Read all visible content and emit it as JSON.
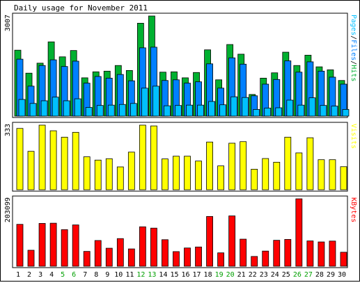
{
  "chart_data": {
    "type": "bar",
    "title": "Daily usage for November 2011",
    "categories": [
      "1",
      "2",
      "3",
      "4",
      "5",
      "6",
      "7",
      "8",
      "9",
      "10",
      "11",
      "12",
      "13",
      "14",
      "15",
      "16",
      "17",
      "18",
      "19",
      "20",
      "21",
      "22",
      "23",
      "24",
      "25",
      "26",
      "27",
      "28",
      "29",
      "30"
    ],
    "weekend_days": [
      "5",
      "6",
      "12",
      "13",
      "19",
      "20",
      "26",
      "27"
    ],
    "grid": false,
    "panels": [
      {
        "id": "hits",
        "ylabel": "Pages/Files/Hits",
        "ylabel_parts": [
          "Pages",
          "/",
          "Files",
          "/",
          "Hits"
        ],
        "ytick_label": "3007",
        "ylim": [
          0,
          3007
        ],
        "series": [
          {
            "name": "Hits",
            "color": "#00b030",
            "values": [
              1980,
              1290,
              1590,
              2230,
              1780,
              1970,
              1150,
              1330,
              1350,
              1520,
              1370,
              2790,
              3007,
              1320,
              1330,
              1150,
              1310,
              1990,
              1090,
              2150,
              1860,
              650,
              1140,
              1300,
              1920,
              1520,
              1830,
              1480,
              1390,
              1070
            ]
          },
          {
            "name": "Files",
            "color": "#0080ff",
            "values": [
              1710,
              900,
              1520,
              1690,
              1490,
              1650,
              990,
              1190,
              1140,
              1250,
              1060,
              2050,
              2070,
              1070,
              1090,
              990,
              1030,
              1570,
              840,
              1750,
              1560,
              610,
              960,
              1100,
              1660,
              1320,
              1630,
              1350,
              1170,
              960
            ]
          },
          {
            "name": "Pages",
            "color": "#00c0ff",
            "values": [
              500,
              380,
              460,
              570,
              460,
              520,
              260,
              320,
              330,
              350,
              380,
              840,
              900,
              310,
              320,
              330,
              330,
              440,
              340,
              580,
              560,
              200,
              240,
              250,
              480,
              330,
              550,
              320,
              300,
              200
            ]
          }
        ]
      },
      {
        "id": "visits",
        "ylabel": "Visits",
        "ytick_label": "333",
        "ylim": [
          0,
          333
        ],
        "series": [
          {
            "name": "Visits",
            "color": "#ffff00",
            "values": [
              316,
              198,
              333,
              304,
              271,
              296,
              170,
              153,
              160,
              118,
              194,
              333,
              329,
              159,
              173,
              173,
              148,
              246,
              123,
              240,
              248,
              106,
              161,
              142,
              271,
              190,
              268,
              155,
              155,
              119
            ]
          }
        ]
      },
      {
        "id": "kbytes",
        "ylabel": "KBytes",
        "ytick_label": "203099",
        "ylim": [
          0,
          203099
        ],
        "series": [
          {
            "name": "KBytes",
            "color": "#ff0000",
            "values": [
              126200,
              48200,
              129000,
              129600,
              110300,
              124500,
              44700,
              77500,
              54300,
              83300,
              52200,
              118800,
              114800,
              80000,
              44100,
              55000,
              58000,
              150000,
              40400,
              151600,
              81600,
              29500,
              45700,
              78200,
              80800,
              203099,
              76300,
              73200,
              75800,
              42200
            ]
          }
        ]
      }
    ]
  },
  "colors": {
    "frame": "#000000",
    "background": "#ffffff",
    "weekday_label": "#000000",
    "weekend_label": "#00a000"
  }
}
